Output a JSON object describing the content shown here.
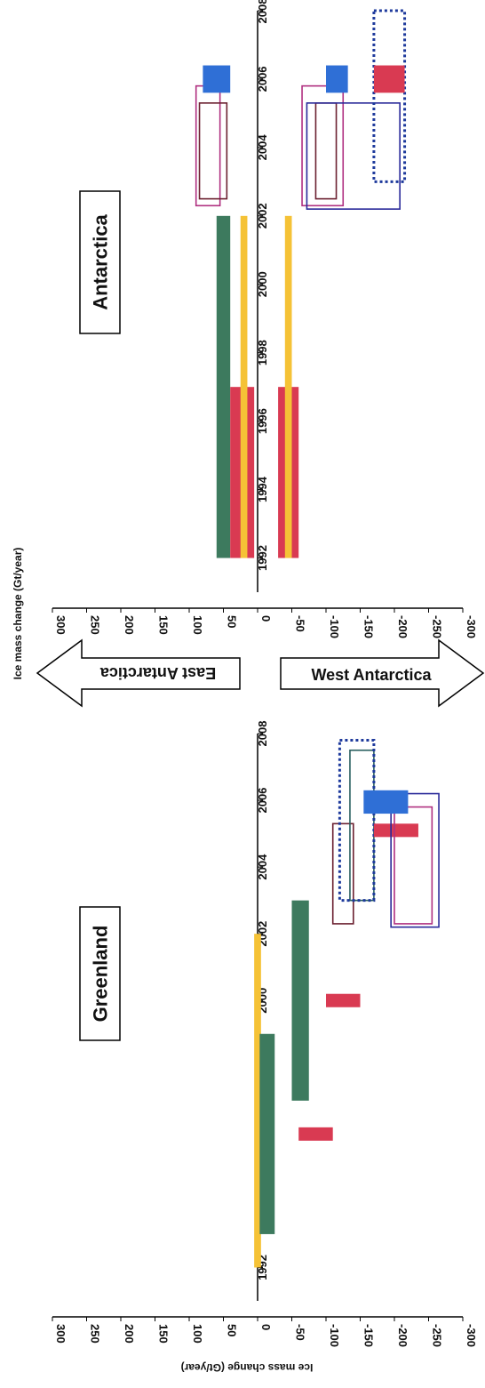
{
  "chart_data": [
    {
      "type": "bar",
      "title": "Greenland",
      "xlabel": "",
      "ylabel": "Ice mass change (Gt/year)",
      "x_ticks": [
        "1992",
        "1994",
        "1996",
        "1998",
        "2000",
        "2002",
        "2004",
        "2006",
        "2008"
      ],
      "y_ticks": [
        "300",
        "250",
        "200",
        "150",
        "100",
        "50",
        "0",
        "-50",
        "-100",
        "-150",
        "-200",
        "-250",
        "-300"
      ],
      "xlim": [
        1991,
        2008
      ],
      "ylim": [
        -300,
        300
      ],
      "series": [
        {
          "type": "filled",
          "color": "#f5c236",
          "x": [
            1992,
            2002
          ],
          "y": [
            5,
            -5
          ]
        },
        {
          "type": "filled",
          "color": "#3d7a5e",
          "x": [
            1993,
            1999
          ],
          "y": [
            -3,
            -25
          ]
        },
        {
          "type": "filled",
          "color": "#3d7a5e",
          "x": [
            1997,
            2003
          ],
          "y": [
            -50,
            -75
          ]
        },
        {
          "type": "filled",
          "color": "#d93a52",
          "x": [
            1995.8,
            1996.2
          ],
          "y": [
            -60,
            -110
          ]
        },
        {
          "type": "filled",
          "color": "#d93a52",
          "x": [
            1999.8,
            2000.2
          ],
          "y": [
            -100,
            -150
          ]
        },
        {
          "type": "outline",
          "color": "#6b2030",
          "x": [
            2002.3,
            2005.3
          ],
          "y": [
            -110,
            -140
          ]
        },
        {
          "type": "outline",
          "color": "#2a6060",
          "x": [
            2003,
            2007.5
          ],
          "y": [
            -135,
            -170
          ]
        },
        {
          "type": "dotted",
          "color": "#1e3a9c",
          "x": [
            2003,
            2007.8
          ],
          "y": [
            -120,
            -170
          ]
        },
        {
          "type": "filled",
          "color": "#d93a52",
          "x": [
            2004.9,
            2005.3
          ],
          "y": [
            -170,
            -235
          ]
        },
        {
          "type": "outline",
          "color": "#b03080",
          "x": [
            2002.3,
            2005.8
          ],
          "y": [
            -200,
            -255
          ]
        },
        {
          "type": "outline",
          "color": "#2a2a9a",
          "x": [
            2002.2,
            2006.2
          ],
          "y": [
            -195,
            -265
          ]
        },
        {
          "type": "filled",
          "color": "#2f6fd6",
          "x": [
            2005.6,
            2006.3
          ],
          "y": [
            -155,
            -220
          ]
        }
      ]
    },
    {
      "type": "bar",
      "title": "Antarctica",
      "xlabel": "",
      "ylabel": "Ice mass change (Gt/year)",
      "x_ticks": [
        "1992",
        "1994",
        "1996",
        "1998",
        "2000",
        "2002",
        "2004",
        "2006",
        "2008"
      ],
      "y_ticks": [
        "300",
        "250",
        "200",
        "150",
        "100",
        "50",
        "0",
        "-50",
        "-100",
        "-150",
        "-200",
        "-250",
        "-300"
      ],
      "xlim": [
        1991,
        2008
      ],
      "ylim": [
        -300,
        300
      ],
      "arrows": {
        "up": "East Antarctica",
        "down": "West Antarctica"
      },
      "series": [
        {
          "type": "filled",
          "color": "#3d7a5e",
          "x": [
            1992,
            2002
          ],
          "y": [
            40,
            60
          ]
        },
        {
          "type": "filled",
          "color": "#d93a52",
          "x": [
            1992,
            1997
          ],
          "y": [
            5,
            40
          ]
        },
        {
          "type": "filled",
          "color": "#f5c236",
          "x": [
            1992,
            2002
          ],
          "y": [
            15,
            25
          ]
        },
        {
          "type": "filled",
          "color": "#d93a52",
          "x": [
            1992,
            1997
          ],
          "y": [
            -30,
            -60
          ]
        },
        {
          "type": "filled",
          "color": "#f5c236",
          "x": [
            1992,
            2002
          ],
          "y": [
            -40,
            -50
          ]
        },
        {
          "type": "outline",
          "color": "#b03080",
          "x": [
            2002.3,
            2005.8
          ],
          "y": [
            55,
            90
          ]
        },
        {
          "type": "outline",
          "color": "#6b2030",
          "x": [
            2002.5,
            2005.3
          ],
          "y": [
            45,
            85
          ]
        },
        {
          "type": "filled",
          "color": "#2f6fd6",
          "x": [
            2005.6,
            2006.4
          ],
          "y": [
            40,
            80
          ]
        },
        {
          "type": "outline",
          "color": "#b03080",
          "x": [
            2002.3,
            2005.8
          ],
          "y": [
            -65,
            -125
          ]
        },
        {
          "type": "outline",
          "color": "#6b2030",
          "x": [
            2002.5,
            2005.3
          ],
          "y": [
            -85,
            -115
          ]
        },
        {
          "type": "outline",
          "color": "#2a2a9a",
          "x": [
            2002.2,
            2005.3
          ],
          "y": [
            -72,
            -208
          ]
        },
        {
          "type": "filled",
          "color": "#2f6fd6",
          "x": [
            2005.6,
            2006.4
          ],
          "y": [
            -100,
            -132
          ]
        },
        {
          "type": "dotted",
          "color": "#1e3a9c",
          "x": [
            2003,
            2008
          ],
          "y": [
            -170,
            -215
          ]
        },
        {
          "type": "filled",
          "color": "#d93a52",
          "x": [
            2005.6,
            2006.4
          ],
          "y": [
            -170,
            -215
          ]
        }
      ]
    }
  ]
}
